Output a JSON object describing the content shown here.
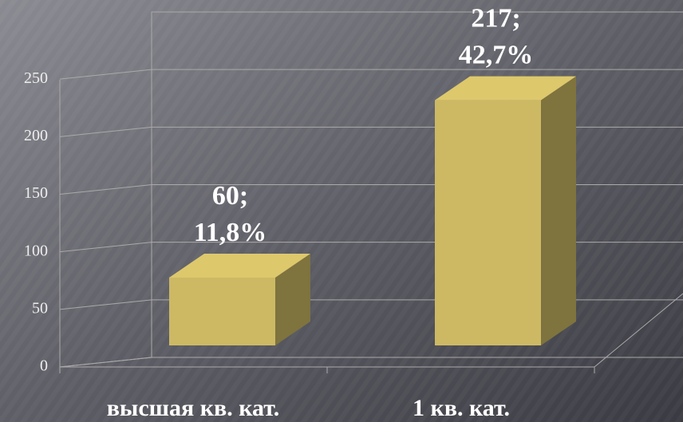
{
  "chart_data": {
    "type": "bar3d",
    "categories": [
      "высшая кв. кат.",
      "1 кв. кат."
    ],
    "values": [
      60,
      217
    ],
    "value_labels": [
      "60;\n11,8%",
      "217;\n42,7%"
    ],
    "color": "#cdb964",
    "ylim": [
      0,
      300
    ],
    "yticks": [
      0,
      50,
      100,
      150,
      200,
      250
    ],
    "grid": true
  }
}
